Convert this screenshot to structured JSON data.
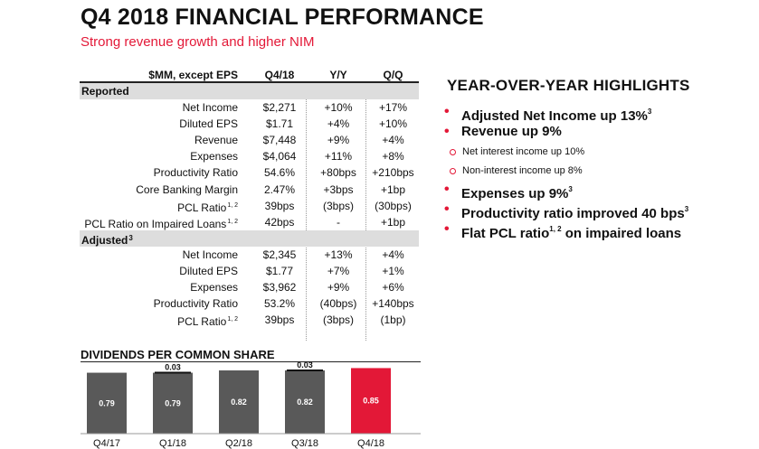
{
  "page": {
    "title": "Q4 2018 FINANCIAL PERFORMANCE",
    "subtitle": "Strong revenue growth and higher NIM"
  },
  "table": {
    "headers": [
      "$MM, except EPS",
      "Q4/18",
      "Y/Y",
      "Q/Q"
    ],
    "sections": [
      {
        "label": "Reported",
        "rows": [
          {
            "label": "Net Income",
            "sup": "",
            "q4": "$2,271",
            "yy": "+10%",
            "qq": "+17%"
          },
          {
            "label": "Diluted EPS",
            "sup": "",
            "q4": "$1.71",
            "yy": "+4%",
            "qq": "+10%"
          },
          {
            "label": "Revenue",
            "sup": "",
            "q4": "$7,448",
            "yy": "+9%",
            "qq": "+4%"
          },
          {
            "label": "Expenses",
            "sup": "",
            "q4": "$4,064",
            "yy": "+11%",
            "qq": "+8%"
          },
          {
            "label": "Productivity Ratio",
            "sup": "",
            "q4": "54.6%",
            "yy": "+80bps",
            "qq": "+210bps"
          },
          {
            "label": "Core Banking Margin",
            "sup": "",
            "q4": "2.47%",
            "yy": "+3bps",
            "qq": "+1bp"
          },
          {
            "label": "PCL Ratio",
            "sup": "1, 2",
            "q4": "39bps",
            "yy": "(3bps)",
            "qq": "(30bps)"
          },
          {
            "label": "PCL Ratio on Impaired Loans",
            "sup": "1, 2",
            "q4": "42bps",
            "yy": "-",
            "qq": "+1bp"
          }
        ]
      },
      {
        "label": "Adjusted",
        "label_sup": "3",
        "rows": [
          {
            "label": "Net Income",
            "sup": "",
            "q4": "$2,345",
            "yy": "+13%",
            "qq": "+4%"
          },
          {
            "label": "Diluted EPS",
            "sup": "",
            "q4": "$1.77",
            "yy": "+7%",
            "qq": "+1%"
          },
          {
            "label": "Expenses",
            "sup": "",
            "q4": "$3,962",
            "yy": "+9%",
            "qq": "+6%"
          },
          {
            "label": "Productivity Ratio",
            "sup": "",
            "q4": "53.2%",
            "yy": "(40bps)",
            "qq": "+140bps"
          },
          {
            "label": "PCL Ratio",
            "sup": "1, 2",
            "q4": "39bps",
            "yy": "(3bps)",
            "qq": "(1bp)"
          }
        ]
      }
    ]
  },
  "highlights": {
    "title": "YEAR-OVER-YEAR HIGHLIGHTS",
    "items": [
      {
        "type": "main",
        "text": "Adjusted Net Income up 13%",
        "sup": "3"
      },
      {
        "type": "main",
        "text": "Revenue up 9%",
        "sup": ""
      },
      {
        "type": "sub",
        "text": "Net interest income up 10%"
      },
      {
        "type": "sub",
        "text": "Non-interest income up 8%"
      },
      {
        "type": "main",
        "text": "Expenses up 9%",
        "sup": "3"
      },
      {
        "type": "main",
        "text": "Productivity ratio improved 40 bps",
        "sup": "3"
      },
      {
        "type": "main",
        "text": "Flat PCL ratio",
        "sup": "1, 2",
        "suffix": " on impaired loans"
      }
    ]
  },
  "dividends": {
    "title": "DIVIDENDS PER COMMON SHARE"
  },
  "chart_data": {
    "type": "bar",
    "title": "DIVIDENDS PER COMMON SHARE",
    "categories": [
      "Q4/17",
      "Q1/18",
      "Q2/18",
      "Q3/18",
      "Q4/18"
    ],
    "values": [
      0.79,
      0.79,
      0.82,
      0.82,
      0.85
    ],
    "value_labels": [
      "0.79",
      "0.79",
      "0.82",
      "0.82",
      "0.85"
    ],
    "increments": [
      null,
      0.03,
      null,
      0.03,
      null
    ],
    "increment_labels": [
      "",
      "0.03",
      "",
      "0.03",
      ""
    ],
    "colors": [
      "#595959",
      "#595959",
      "#595959",
      "#595959",
      "#e31837"
    ],
    "ylim": [
      0,
      0.82
    ]
  }
}
